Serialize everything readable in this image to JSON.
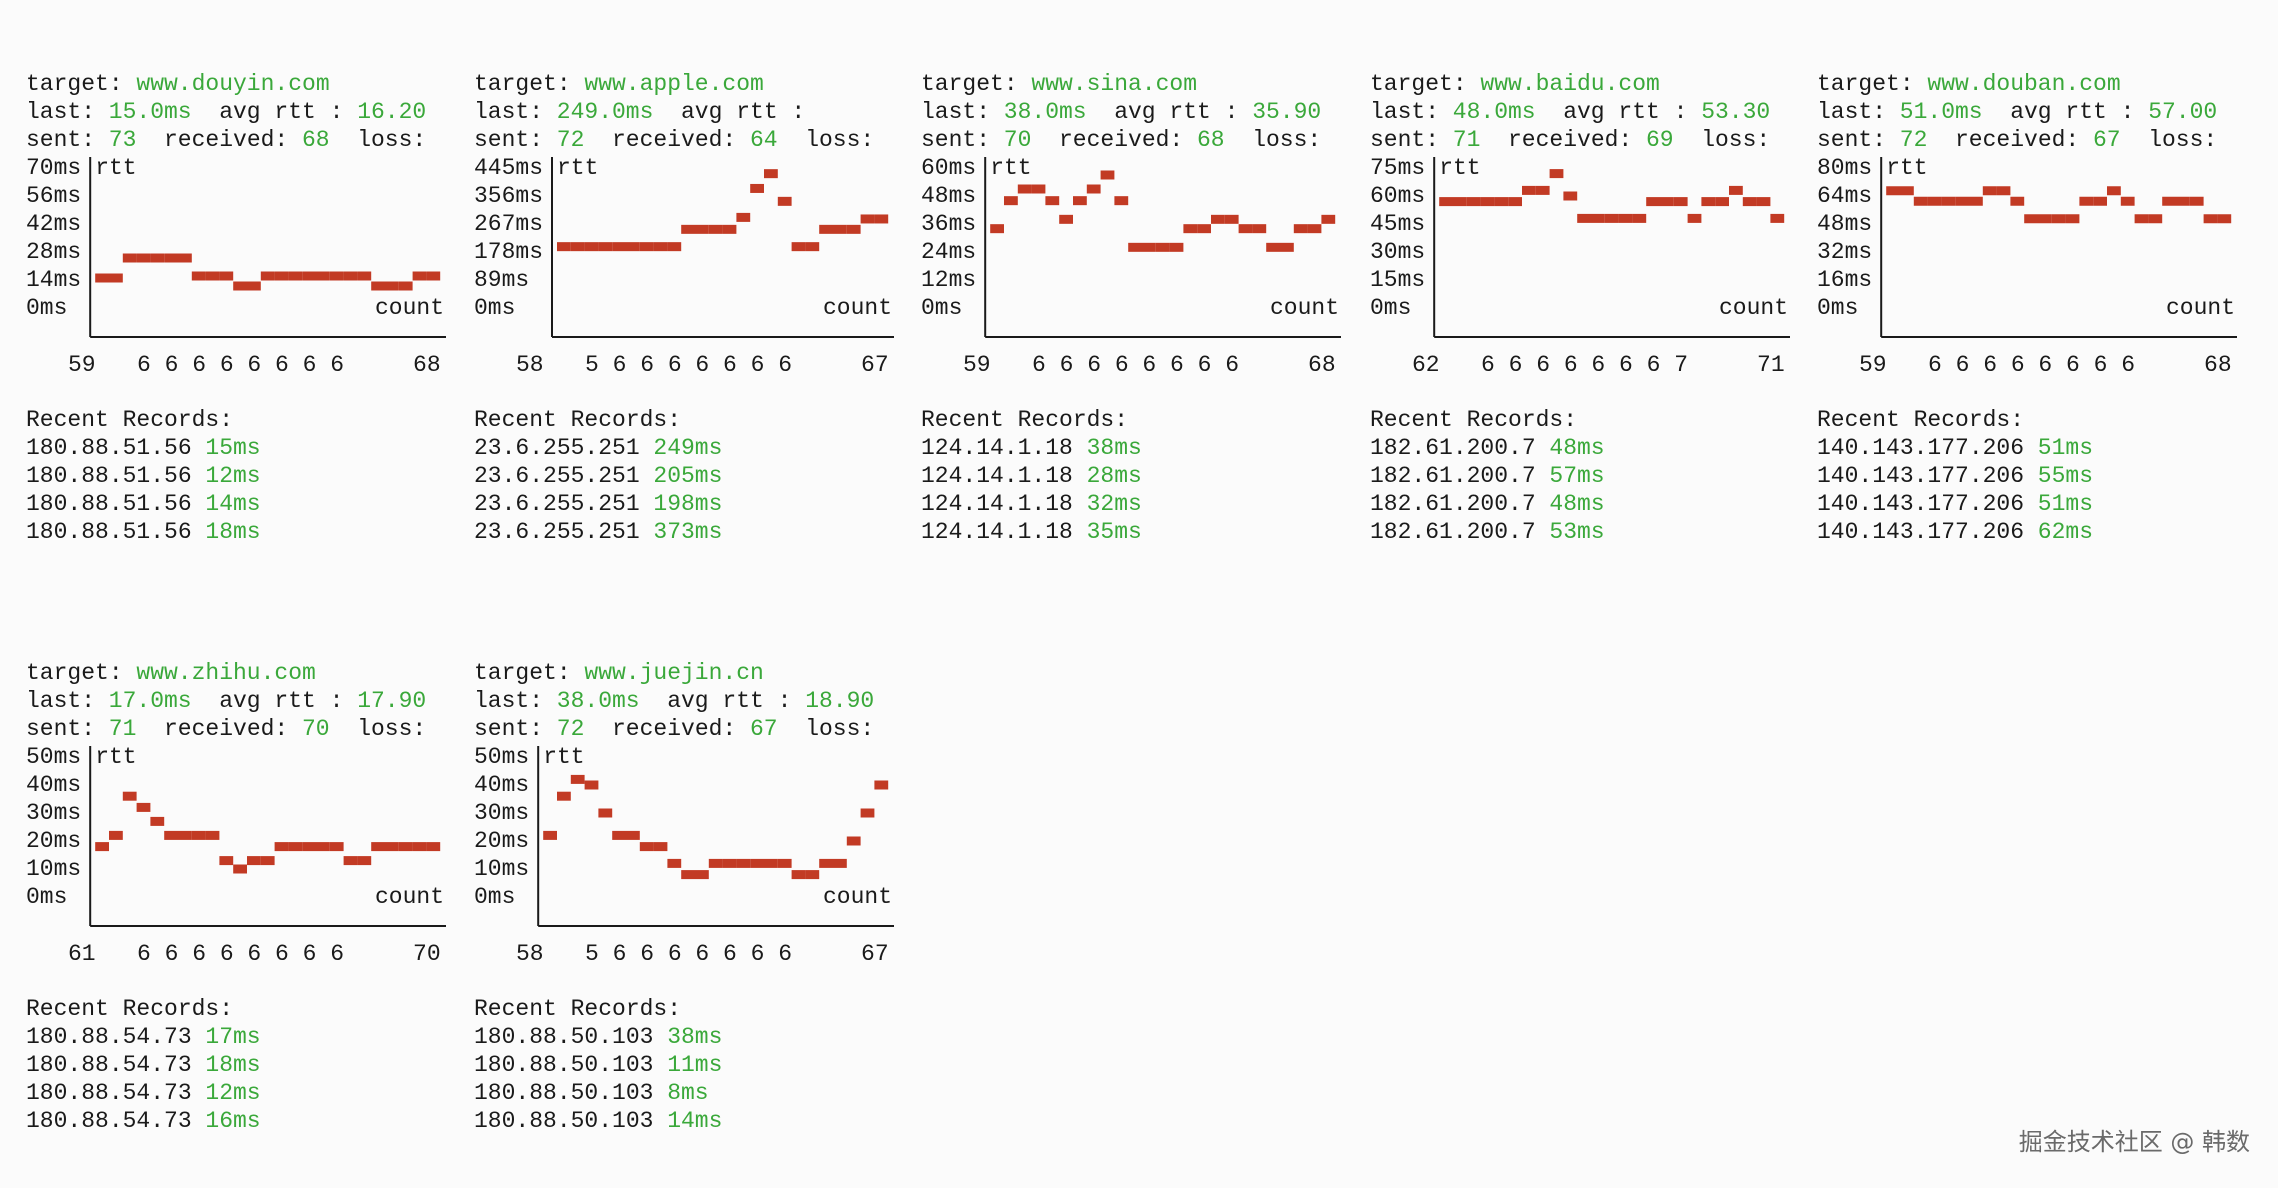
{
  "labels": {
    "target": "target:",
    "last": "last:",
    "avg": "avg rtt :",
    "sent": "sent:",
    "received": "received:",
    "loss": "loss:",
    "rtt": "rtt",
    "count": "count",
    "recent": "Recent Records:"
  },
  "panels": [
    {
      "target": "www.douyin.com",
      "last": "15.0ms",
      "avg": "16.20",
      "sent": 73,
      "received": 68,
      "yticks": [
        {
          "value": 70,
          "label": "70ms"
        },
        {
          "value": 56,
          "label": "56ms"
        },
        {
          "value": 42,
          "label": "42ms"
        },
        {
          "value": 28,
          "label": "28ms"
        },
        {
          "value": 14,
          "label": "14ms"
        },
        {
          "value": 0,
          "label": "0ms"
        }
      ],
      "x_labels": "59   6 6 6 6 6 6 6 6     68",
      "rtt": [
        15,
        15,
        25,
        25,
        25,
        25,
        25,
        16,
        16,
        16,
        11,
        11,
        16,
        16,
        16,
        16,
        16,
        16,
        16,
        16,
        11,
        11,
        11,
        16,
        16
      ],
      "records": [
        {
          "ip": "180.88.51.56",
          "rtt": "15ms"
        },
        {
          "ip": "180.88.51.56",
          "rtt": "12ms"
        },
        {
          "ip": "180.88.51.56",
          "rtt": "14ms"
        },
        {
          "ip": "180.88.51.56",
          "rtt": "18ms"
        }
      ]
    },
    {
      "target": "www.apple.com",
      "last": "249.0ms",
      "avg": "",
      "sent": 72,
      "received": 64,
      "yticks": [
        {
          "value": 445,
          "label": "445ms"
        },
        {
          "value": 356,
          "label": "356ms"
        },
        {
          "value": 267,
          "label": "267ms"
        },
        {
          "value": 178,
          "label": "178ms"
        },
        {
          "value": 89,
          "label": "89ms"
        },
        {
          "value": 0,
          "label": "0ms"
        }
      ],
      "x_labels": "58   5 6 6 6 6 6 6 6     67",
      "rtt": [
        195,
        195,
        195,
        195,
        195,
        195,
        195,
        195,
        195,
        250,
        250,
        250,
        250,
        288,
        380,
        427,
        339,
        195,
        195,
        250,
        250,
        250,
        283,
        283
      ],
      "records": [
        {
          "ip": "23.6.255.251",
          "rtt": "249ms"
        },
        {
          "ip": "23.6.255.251",
          "rtt": "205ms"
        },
        {
          "ip": "23.6.255.251",
          "rtt": "198ms"
        },
        {
          "ip": "23.6.255.251",
          "rtt": "373ms"
        }
      ]
    },
    {
      "target": "www.sina.com",
      "last": "38.0ms",
      "avg": "35.90",
      "sent": 70,
      "received": 68,
      "yticks": [
        {
          "value": 60,
          "label": "60ms"
        },
        {
          "value": 48,
          "label": "48ms"
        },
        {
          "value": 36,
          "label": "36ms"
        },
        {
          "value": 24,
          "label": "24ms"
        },
        {
          "value": 12,
          "label": "12ms"
        },
        {
          "value": 0,
          "label": "0ms"
        }
      ],
      "x_labels": "59   6 6 6 6 6 6 6 6     68",
      "rtt": [
        34,
        46,
        51,
        51,
        46,
        38,
        46,
        51,
        57,
        46,
        26,
        26,
        26,
        26,
        34,
        34,
        38,
        38,
        34,
        34,
        26,
        26,
        34,
        34,
        38
      ],
      "records": [
        {
          "ip": "124.14.1.18",
          "rtt": "38ms"
        },
        {
          "ip": "124.14.1.18",
          "rtt": "28ms"
        },
        {
          "ip": "124.14.1.18",
          "rtt": "32ms"
        },
        {
          "ip": "124.14.1.18",
          "rtt": "35ms"
        }
      ]
    },
    {
      "target": "www.baidu.com",
      "last": "48.0ms",
      "avg": "53.30",
      "sent": 71,
      "received": 69,
      "yticks": [
        {
          "value": 75,
          "label": "75ms"
        },
        {
          "value": 60,
          "label": "60ms"
        },
        {
          "value": 45,
          "label": "45ms"
        },
        {
          "value": 30,
          "label": "30ms"
        },
        {
          "value": 15,
          "label": "15ms"
        },
        {
          "value": 0,
          "label": "0ms"
        }
      ],
      "x_labels": "62   6 6 6 6 6 6 6 7     71",
      "rtt": [
        57,
        57,
        57,
        57,
        57,
        57,
        63,
        63,
        72,
        60,
        48,
        48,
        48,
        48,
        48,
        57,
        57,
        57,
        48,
        57,
        57,
        63,
        57,
        57,
        48
      ],
      "records": [
        {
          "ip": "182.61.200.7",
          "rtt": "48ms"
        },
        {
          "ip": "182.61.200.7",
          "rtt": "57ms"
        },
        {
          "ip": "182.61.200.7",
          "rtt": "48ms"
        },
        {
          "ip": "182.61.200.7",
          "rtt": "53ms"
        }
      ]
    },
    {
      "target": "www.douban.com",
      "last": "51.0ms",
      "avg": "57.00",
      "sent": 72,
      "received": 67,
      "yticks": [
        {
          "value": 80,
          "label": "80ms"
        },
        {
          "value": 64,
          "label": "64ms"
        },
        {
          "value": 48,
          "label": "48ms"
        },
        {
          "value": 32,
          "label": "32ms"
        },
        {
          "value": 16,
          "label": "16ms"
        },
        {
          "value": 0,
          "label": "0ms"
        }
      ],
      "x_labels": "59   6 6 6 6 6 6 6 6     68",
      "rtt": [
        67,
        67,
        61,
        61,
        61,
        61,
        61,
        67,
        67,
        61,
        51,
        51,
        51,
        51,
        61,
        61,
        67,
        61,
        51,
        51,
        61,
        61,
        61,
        51,
        51
      ],
      "records": [
        {
          "ip": "140.143.177.206",
          "rtt": "51ms"
        },
        {
          "ip": "140.143.177.206",
          "rtt": "55ms"
        },
        {
          "ip": "140.143.177.206",
          "rtt": "51ms"
        },
        {
          "ip": "140.143.177.206",
          "rtt": "62ms"
        }
      ]
    },
    {
      "target": "www.zhihu.com",
      "last": "17.0ms",
      "avg": "17.90",
      "sent": 71,
      "received": 70,
      "yticks": [
        {
          "value": 50,
          "label": "50ms"
        },
        {
          "value": 40,
          "label": "40ms"
        },
        {
          "value": 30,
          "label": "30ms"
        },
        {
          "value": 20,
          "label": "20ms"
        },
        {
          "value": 10,
          "label": "10ms"
        },
        {
          "value": 0,
          "label": "0ms"
        }
      ],
      "x_labels": "61   6 6 6 6 6 6 6 6     70",
      "rtt": [
        18,
        22,
        36,
        32,
        27,
        22,
        22,
        22,
        22,
        13,
        10,
        13,
        13,
        18,
        18,
        18,
        18,
        18,
        13,
        13,
        18,
        18,
        18,
        18,
        18
      ],
      "records": [
        {
          "ip": "180.88.54.73",
          "rtt": "17ms"
        },
        {
          "ip": "180.88.54.73",
          "rtt": "18ms"
        },
        {
          "ip": "180.88.54.73",
          "rtt": "12ms"
        },
        {
          "ip": "180.88.54.73",
          "rtt": "16ms"
        }
      ]
    },
    {
      "target": "www.juejin.cn",
      "last": "38.0ms",
      "avg": "18.90",
      "sent": 72,
      "received": 67,
      "yticks": [
        {
          "value": 50,
          "label": "50ms"
        },
        {
          "value": 40,
          "label": "40ms"
        },
        {
          "value": 30,
          "label": "30ms"
        },
        {
          "value": 20,
          "label": "20ms"
        },
        {
          "value": 10,
          "label": "10ms"
        },
        {
          "value": 0,
          "label": "0ms"
        }
      ],
      "x_labels": "58   5 6 6 6 6 6 6 6     67",
      "rtt": [
        22,
        36,
        42,
        40,
        30,
        22,
        22,
        18,
        18,
        12,
        8,
        8,
        12,
        12,
        12,
        12,
        12,
        12,
        8,
        8,
        12,
        12,
        20,
        30,
        40
      ],
      "records": [
        {
          "ip": "180.88.50.103",
          "rtt": "38ms"
        },
        {
          "ip": "180.88.50.103",
          "rtt": "11ms"
        },
        {
          "ip": "180.88.50.103",
          "rtt": "8ms"
        },
        {
          "ip": "180.88.50.103",
          "rtt": "14ms"
        }
      ]
    }
  ],
  "watermark": "掘金技术社区 @ 韩数"
}
